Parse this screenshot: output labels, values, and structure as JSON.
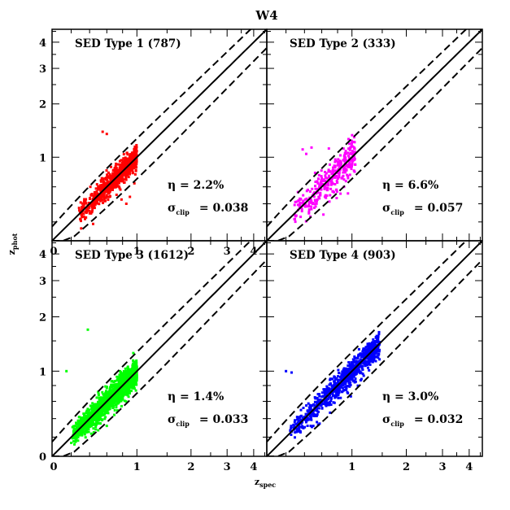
{
  "figure": {
    "title": "W4",
    "xlabel": "z",
    "xlabel_sub": "spec",
    "ylabel": "z",
    "ylabel_sub": "phot",
    "eta_symbol": "η",
    "sigma_symbol": "σ",
    "sigma_sub": "clip"
  },
  "chart_data": [
    {
      "type": "scatter",
      "title": "SED Type 1 (787)",
      "color": "#ff0000",
      "n": 787,
      "eta": "η = 2.2%",
      "sigma": "= 0.038",
      "xlim": [
        0,
        4.6
      ],
      "ylim": [
        0,
        4.6
      ],
      "x_ticks": [
        "0",
        "1",
        "2",
        "3",
        "4"
      ],
      "y_ticks": [
        "1",
        "2",
        "3",
        "4"
      ],
      "x_range": [
        0.28,
        1.0
      ],
      "y_center": [
        0.28,
        0.95
      ],
      "outliers": [
        [
          0.55,
          1.42
        ],
        [
          0.6,
          1.38
        ],
        [
          0.85,
          0.4
        ],
        [
          0.9,
          0.48
        ]
      ]
    },
    {
      "type": "scatter",
      "title": "SED Type 2 (333)",
      "color": "#ff00ff",
      "n": 333,
      "eta": "η = 6.6%",
      "sigma": "= 0.057",
      "xlim": [
        0,
        4.6
      ],
      "ylim": [
        0,
        4.6
      ],
      "x_ticks": [],
      "y_ticks": [],
      "x_range": [
        0.25,
        1.05
      ],
      "y_center": [
        0.22,
        0.95
      ],
      "outliers": [
        [
          0.38,
          1.12
        ],
        [
          0.42,
          1.05
        ],
        [
          0.48,
          1.15
        ],
        [
          0.3,
          0.42
        ],
        [
          0.62,
          0.28
        ]
      ]
    },
    {
      "type": "scatter",
      "title": "SED Type 3 (1612)",
      "color": "#00ff00",
      "n": 1612,
      "eta": "η = 1.4%",
      "sigma": "= 0.033",
      "xlim": [
        0,
        4.6
      ],
      "ylim": [
        0,
        4.6
      ],
      "x_ticks": [
        "0",
        "1",
        "2",
        "3",
        "4"
      ],
      "y_ticks": [
        "0",
        "1",
        "2",
        "3",
        "4"
      ],
      "x_range": [
        0.2,
        1.0
      ],
      "y_center": [
        0.2,
        0.98
      ],
      "outliers": [
        [
          0.38,
          1.72
        ],
        [
          0.15,
          1.0
        ],
        [
          0.6,
          0.32
        ]
      ]
    },
    {
      "type": "scatter",
      "title": "SED Type 4 (903)",
      "color": "#0000ff",
      "n": 903,
      "eta": "η = 3.0%",
      "sigma": "= 0.032",
      "xlim": [
        0,
        4.6
      ],
      "ylim": [
        0,
        4.6
      ],
      "x_ticks": [
        "1",
        "2",
        "3",
        "4"
      ],
      "y_ticks": [],
      "x_range": [
        0.22,
        1.45
      ],
      "y_center": [
        0.22,
        1.3
      ],
      "outliers": [
        [
          0.2,
          1.0
        ],
        [
          0.26,
          0.98
        ],
        [
          0.5,
          0.32
        ],
        [
          1.45,
          1.18
        ]
      ]
    }
  ]
}
